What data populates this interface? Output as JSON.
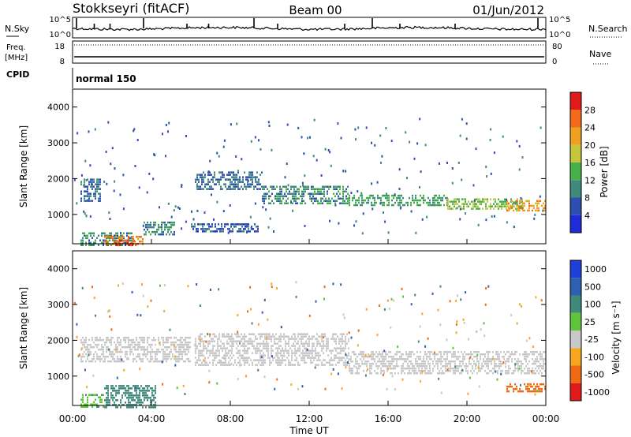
{
  "header": {
    "station": "Stokkseyri (fitACF)",
    "beam": "Beam 00",
    "date": "01/Jun/2012"
  },
  "noise_panel": {
    "left_label": "N.Sky",
    "right_label": "N.Search",
    "left_ticks": [
      "10^5",
      "10^0"
    ],
    "right_ticks": [
      "10^5",
      "10^0"
    ]
  },
  "freq_panel": {
    "left_label_1": "Freq.",
    "left_label_2": "[MHz]",
    "right_label": "Nave",
    "left_ticks": [
      "18",
      "8"
    ],
    "right_ticks": [
      "80",
      "0"
    ]
  },
  "cpid": {
    "label": "CPID",
    "mode": "normal 150"
  },
  "time_axis": {
    "label": "Time UT",
    "ticks": [
      "00:00",
      "04:00",
      "08:00",
      "12:00",
      "16:00",
      "20:00",
      "00:00"
    ]
  },
  "power_panel": {
    "ylabel": "Slant Range [km]",
    "yticks": [
      "1000",
      "2000",
      "3000",
      "4000"
    ],
    "colorbar_label": "Power [dB]",
    "colorbar_ticks": [
      "4",
      "8",
      "12",
      "16",
      "20",
      "24",
      "28"
    ],
    "colors": [
      "#1f2bd8",
      "#2f4fb0",
      "#3f8a7a",
      "#46b04a",
      "#c6c63c",
      "#f0a020",
      "#f26a1a",
      "#e01a1a"
    ]
  },
  "velocity_panel": {
    "ylabel": "Slant Range [km]",
    "yticks": [
      "1000",
      "2000",
      "3000",
      "4000"
    ],
    "colorbar_label": "Velocity [m s⁻¹]",
    "colorbar_ticks": [
      "1000",
      "500",
      "100",
      "25",
      "-25",
      "-100",
      "-500",
      "-1000"
    ],
    "colors": [
      "#1f3fd8",
      "#2f5fb0",
      "#3f8a7a",
      "#5ec43a",
      "#c8c8c8",
      "#f5a81f",
      "#f06a15",
      "#e01a1a"
    ]
  },
  "chart_data": [
    {
      "type": "line",
      "title": "N.Sky / N.Search",
      "x": [
        "00:00",
        "04:00",
        "08:00",
        "12:00",
        "16:00",
        "20:00",
        "00:00"
      ],
      "ylim": [
        0,
        5
      ],
      "series": [
        {
          "name": "N.Sky",
          "values": [
            3.2,
            3.1,
            3.0,
            2.9,
            3.0,
            3.1,
            3.0
          ]
        }
      ]
    },
    {
      "type": "line",
      "title": "Freq / Nave",
      "x": [
        "00:00",
        "04:00",
        "08:00",
        "12:00",
        "16:00",
        "20:00",
        "00:00"
      ],
      "series": [
        {
          "name": "Freq.",
          "values": [
            9,
            9,
            9,
            9,
            9,
            9,
            9
          ]
        },
        {
          "name": "Nave",
          "values": [
            80,
            80,
            80,
            80,
            80,
            80,
            80
          ]
        }
      ]
    },
    {
      "type": "heatmap",
      "title": "Power",
      "xlim": [
        0,
        24
      ],
      "ylim": [
        180,
        4500
      ],
      "ylabel": "Slant Range [km]",
      "zlabel": "Power [dB]",
      "zlim": [
        0,
        32
      ],
      "patches": [
        {
          "t": [
            0.4,
            1.4
          ],
          "r": [
            1350,
            2000
          ],
          "level": 8
        },
        {
          "t": [
            0.4,
            3.0
          ],
          "r": [
            150,
            500
          ],
          "level": 10
        },
        {
          "t": [
            1.6,
            3.6
          ],
          "r": [
            150,
            400
          ],
          "level": 24
        },
        {
          "t": [
            2.2,
            3.2
          ],
          "r": [
            150,
            300
          ],
          "level": 28
        },
        {
          "t": [
            3.6,
            5.2
          ],
          "r": [
            450,
            800
          ],
          "level": 10
        },
        {
          "t": [
            6.2,
            9.6
          ],
          "r": [
            1700,
            2200
          ],
          "level": 8
        },
        {
          "t": [
            9.6,
            14.0
          ],
          "r": [
            1300,
            1800
          ],
          "level": 10
        },
        {
          "t": [
            14.0,
            19.0
          ],
          "r": [
            1250,
            1550
          ],
          "level": 12
        },
        {
          "t": [
            19.0,
            22.8
          ],
          "r": [
            1150,
            1450
          ],
          "level": 16
        },
        {
          "t": [
            22.0,
            24.0
          ],
          "r": [
            1100,
            1400
          ],
          "level": 22
        },
        {
          "t": [
            6.0,
            9.4
          ],
          "r": [
            550,
            750
          ],
          "level": 6
        }
      ]
    },
    {
      "type": "heatmap",
      "title": "Velocity",
      "xlim": [
        0,
        24
      ],
      "ylim": [
        180,
        4500
      ],
      "ylabel": "Slant Range [km]",
      "zlabel": "Velocity [m s^-1]",
      "patches": [
        {
          "t": [
            0.4,
            6.0
          ],
          "r": [
            1400,
            2100
          ],
          "level": 0
        },
        {
          "t": [
            6.2,
            14.0
          ],
          "r": [
            1300,
            2200
          ],
          "level": 0
        },
        {
          "t": [
            14.0,
            24.0
          ],
          "r": [
            1100,
            1700
          ],
          "level": 0
        },
        {
          "t": [
            1.6,
            4.2
          ],
          "r": [
            150,
            750
          ],
          "level": 80
        },
        {
          "t": [
            0.4,
            1.6
          ],
          "r": [
            150,
            500
          ],
          "level": 40
        },
        {
          "t": [
            22.0,
            24.0
          ],
          "r": [
            600,
            800
          ],
          "level": -150
        }
      ]
    }
  ]
}
